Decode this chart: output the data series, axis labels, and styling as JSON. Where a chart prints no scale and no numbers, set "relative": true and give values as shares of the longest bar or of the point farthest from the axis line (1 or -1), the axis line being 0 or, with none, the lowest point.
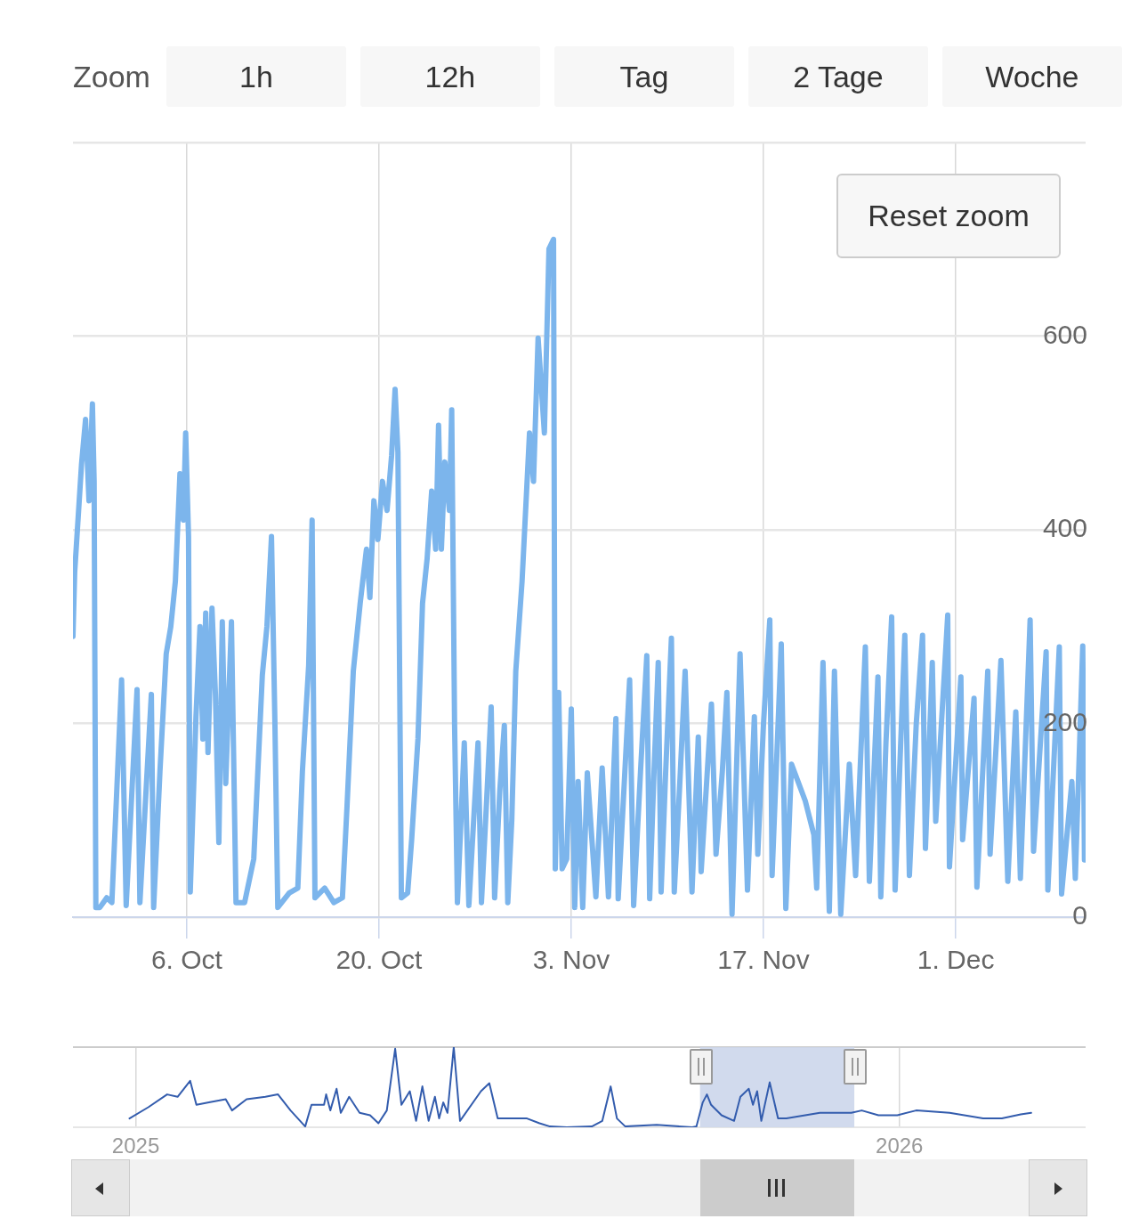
{
  "chart_data": [
    {
      "type": "line",
      "annotations": [
        "Zoom",
        "1h",
        "12h",
        "Tag",
        "2 Tage",
        "Woche",
        "Reset zoom"
      ],
      "x": [
        "2025-09-27T17:00",
        "2025-09-27T20:00",
        "2025-09-28T02:00",
        "2025-09-28T08:00",
        "2025-09-28T15:00",
        "2025-09-28T21:00",
        "2025-09-29T03:00",
        "2025-09-29T06:00",
        "2025-09-29T09:00",
        "2025-09-29T16:00",
        "2025-09-30T04:00",
        "2025-09-30T13:00",
        "2025-09-30T23:00",
        "2025-10-01T06:00",
        "2025-10-01T14:00",
        "2025-10-02T09:00",
        "2025-10-02T14:00",
        "2025-10-03T10:00",
        "2025-10-03T14:00",
        "2025-10-04T01:00",
        "2025-10-04T12:00",
        "2025-10-04T20:00",
        "2025-10-05T04:00",
        "2025-10-05T12:00",
        "2025-10-05T18:00",
        "2025-10-05T22:00",
        "2025-10-06T03:00",
        "2025-10-06T06:00",
        "2025-10-06T16:00",
        "2025-10-06T23:00",
        "2025-10-07T04:00",
        "2025-10-07T09:00",
        "2025-10-07T13:00",
        "2025-10-07T20:00",
        "2025-10-08T02:00",
        "2025-10-08T08:00",
        "2025-10-08T14:00",
        "2025-10-08T20:00",
        "2025-10-09T06:00",
        "2025-10-09T14:00",
        "2025-10-10T05:00",
        "2025-10-10T21:00",
        "2025-10-11T12:00",
        "2025-10-11T20:00",
        "2025-10-12T04:00",
        "2025-10-12T10:00",
        "2025-10-12T15:00",
        "2025-10-13T11:00",
        "2025-10-14T02:00",
        "2025-10-14T10:00",
        "2025-10-14T21:00",
        "2025-10-15T03:00",
        "2025-10-15T08:00",
        "2025-10-16T01:00",
        "2025-10-16T17:00",
        "2025-10-17T08:00",
        "2025-10-17T16:00",
        "2025-10-18T03:00",
        "2025-10-18T15:00",
        "2025-10-19T02:00",
        "2025-10-19T08:00",
        "2025-10-19T15:00",
        "2025-10-19T22:00",
        "2025-10-20T06:00",
        "2025-10-20T14:00",
        "2025-10-20T22:00",
        "2025-10-21T04:00",
        "2025-10-21T09:00",
        "2025-10-21T15:00",
        "2025-10-22T02:00",
        "2025-10-22T09:00",
        "2025-10-22T20:00",
        "2025-10-23T04:00",
        "2025-10-23T12:00",
        "2025-10-23T20:00",
        "2025-10-24T03:00",
        "2025-10-24T08:00",
        "2025-10-24T13:00",
        "2025-10-24T19:00",
        "2025-10-25T03:00",
        "2025-10-25T07:00",
        "2025-10-25T12:00",
        "2025-10-25T17:00",
        "2025-10-26T05:00",
        "2025-10-26T13:00",
        "2025-10-27T05:00",
        "2025-10-27T11:00",
        "2025-10-27T20:00",
        "2025-10-28T04:00",
        "2025-10-28T10:00",
        "2025-10-28T19:00",
        "2025-10-29T03:00",
        "2025-10-29T09:00",
        "2025-10-29T16:00",
        "2025-10-29T23:00",
        "2025-10-30T10:00",
        "2025-10-30T23:00",
        "2025-10-31T06:00",
        "2025-10-31T14:00",
        "2025-11-01T01:00",
        "2025-11-01T09:00",
        "2025-11-01T17:00",
        "2025-11-01T20:00",
        "2025-11-02T02:00",
        "2025-11-02T08:00",
        "2025-11-02T16:00",
        "2025-11-03T00:00",
        "2025-11-03T06:00",
        "2025-11-03T12:00",
        "2025-11-03T20:00",
        "2025-11-04T04:00",
        "2025-11-04T19:00",
        "2025-11-05T06:00",
        "2025-11-05T17:00",
        "2025-11-06T06:00",
        "2025-11-06T10:00",
        "2025-11-06T19:00",
        "2025-11-07T06:00",
        "2025-11-07T13:00",
        "2025-11-08T01:00",
        "2025-11-08T12:00",
        "2025-11-08T17:00",
        "2025-11-09T00:00",
        "2025-11-09T08:00",
        "2025-11-09T13:00",
        "2025-11-09T21:00",
        "2025-11-10T07:00",
        "2025-11-10T12:00",
        "2025-11-10T21:00",
        "2025-11-11T07:00",
        "2025-11-11T19:00",
        "2025-11-12T06:00",
        "2025-11-12T11:00",
        "2025-11-13T05:00",
        "2025-11-13T13:00",
        "2025-11-14T00:00",
        "2025-11-14T08:00",
        "2025-11-14T17:00",
        "2025-11-15T07:00",
        "2025-11-15T20:00",
        "2025-11-16T08:00",
        "2025-11-16T14:00",
        "2025-11-17T00:00",
        "2025-11-17T11:00",
        "2025-11-17T15:00",
        "2025-11-18T07:00",
        "2025-11-18T15:00",
        "2025-11-19T01:00",
        "2025-11-20T01:00",
        "2025-11-20T16:00",
        "2025-11-20T21:00",
        "2025-11-21T08:00",
        "2025-11-21T19:00",
        "2025-11-22T04:00",
        "2025-11-22T15:00",
        "2025-11-23T06:00",
        "2025-11-23T17:00",
        "2025-11-24T10:00",
        "2025-11-24T17:00",
        "2025-11-25T08:00",
        "2025-11-25T13:00",
        "2025-11-25T22:00",
        "2025-11-26T08:00",
        "2025-11-26T14:00",
        "2025-11-27T07:00",
        "2025-11-27T15:00",
        "2025-11-28T03:00",
        "2025-11-28T14:00",
        "2025-11-28T19:00",
        "2025-11-29T07:00",
        "2025-11-29T13:00",
        "2025-11-29T23:00",
        "2025-11-30T10:00",
        "2025-11-30T13:00",
        "2025-12-01T09:00",
        "2025-12-01T12:00",
        "2025-12-02T08:00",
        "2025-12-02T13:00",
        "2025-12-03T08:00",
        "2025-12-03T12:00",
        "2025-12-04T07:00",
        "2025-12-04T19:00",
        "2025-12-05T09:00",
        "2025-12-05T17:00",
        "2025-12-06T10:00",
        "2025-12-06T16:00",
        "2025-12-07T14:00",
        "2025-12-07T17:00",
        "2025-12-08T13:00",
        "2025-12-08T17:00",
        "2025-12-09T11:00",
        "2025-12-09T17:00",
        "2025-12-10T06:00",
        "2025-12-10T09:00"
      ],
      "series": [
        {
          "color": "#7cb5ec",
          "values": [
            290,
            356,
            412,
            468,
            514,
            430,
            530,
            450,
            10,
            10,
            20,
            15,
            150,
            245,
            12,
            235,
            15,
            230,
            10,
            150,
            272,
            300,
            347,
            458,
            410,
            500,
            393,
            26,
            207,
            300,
            184,
            314,
            170,
            319,
            230,
            77,
            305,
            138,
            305,
            15,
            15,
            60,
            250,
            300,
            393,
            200,
            10,
            25,
            30,
            150,
            260,
            410,
            20,
            30,
            15,
            20,
            114,
            254,
            324,
            380,
            330,
            430,
            390,
            450,
            420,
            477,
            545,
            480,
            20,
            25,
            80,
            184,
            324,
            370,
            440,
            380,
            508,
            380,
            470,
            420,
            524,
            200,
            15,
            180,
            12,
            180,
            15,
            120,
            217,
            20,
            130,
            198,
            15,
            100,
            254,
            347,
            500,
            450,
            598,
            500,
            690,
            700,
            50,
            232,
            50,
            60,
            215,
            10,
            140,
            10,
            149,
            21,
            154,
            21,
            205,
            19,
            120,
            245,
            12,
            150,
            270,
            19,
            140,
            263,
            26,
            150,
            288,
            26,
            130,
            254,
            26,
            186,
            47,
            220,
            65,
            150,
            232,
            3,
            272,
            28,
            207,
            65,
            200,
            307,
            43,
            282,
            9,
            158,
            120,
            85,
            30,
            263,
            6,
            254,
            3,
            158,
            43,
            279,
            37,
            248,
            21,
            180,
            310,
            28,
            291,
            43,
            200,
            291,
            71,
            263,
            99,
            200,
            312,
            52,
            248,
            80,
            226,
            31,
            254,
            65,
            265,
            37,
            212,
            40,
            307,
            68,
            274,
            28,
            279,
            24,
            140,
            40,
            280,
            59
          ]
        }
      ],
      "xlim": [
        "2025-09-27T17:00",
        "2025-12-10T11:00"
      ],
      "ylim": [
        0,
        800
      ],
      "xticks": [
        {
          "value": "2025-10-06",
          "label": "6. Oct"
        },
        {
          "value": "2025-10-20",
          "label": "20. Oct"
        },
        {
          "value": "2025-11-03",
          "label": "3. Nov"
        },
        {
          "value": "2025-11-17",
          "label": "17. Nov"
        },
        {
          "value": "2025-12-01",
          "label": "1. Dec"
        }
      ],
      "yticks": [
        0,
        200,
        400,
        600,
        {
          "value": 800,
          "label": null
        }
      ],
      "grid": true
    },
    {
      "type": "line",
      "relative": true,
      "tick_labels": "x",
      "grid": "x",
      "x": [
        "2024-12-29",
        "2025-01-07",
        "2025-01-16",
        "2025-01-21",
        "2025-01-27",
        "2025-01-30",
        "2025-02-05",
        "2025-02-13",
        "2025-02-16",
        "2025-02-23",
        "2025-03-04",
        "2025-03-10",
        "2025-03-16",
        "2025-03-23",
        "2025-03-26",
        "2025-04-01",
        "2025-04-02",
        "2025-04-04",
        "2025-04-07",
        "2025-04-09",
        "2025-04-13",
        "2025-04-18",
        "2025-04-23",
        "2025-04-27",
        "2025-05-01",
        "2025-05-05",
        "2025-05-08",
        "2025-05-12",
        "2025-05-15",
        "2025-05-18",
        "2025-05-21",
        "2025-05-24",
        "2025-05-26",
        "2025-05-28",
        "2025-05-30",
        "2025-06-02",
        "2025-06-05",
        "2025-06-15",
        "2025-06-19",
        "2025-06-23",
        "2025-07-07",
        "2025-07-13",
        "2025-07-18",
        "2025-07-26",
        "2025-08-07",
        "2025-08-12",
        "2025-08-16",
        "2025-08-19",
        "2025-08-23",
        "2025-09-07",
        "2025-09-24",
        "2025-09-26",
        "2025-09-29",
        "2025-10-01",
        "2025-10-03",
        "2025-10-08",
        "2025-10-14",
        "2025-10-17",
        "2025-10-21",
        "2025-10-23",
        "2025-10-25",
        "2025-10-27",
        "2025-10-31",
        "2025-11-04",
        "2025-11-08",
        "2025-11-24",
        "2025-12-09",
        "2025-12-14",
        "2025-12-22",
        "2025-12-31",
        "2026-01-09",
        "2026-01-25",
        "2026-02-10",
        "2026-02-19",
        "2026-02-28",
        "2026-03-05"
      ],
      "series": [
        {
          "color": "#335cad",
          "values": [
            0.11,
            0.25,
            0.41,
            0.38,
            0.58,
            0.28,
            0.31,
            0.35,
            0.21,
            0.35,
            0.38,
            0.41,
            0.21,
            0.01,
            0.28,
            0.28,
            0.41,
            0.21,
            0.48,
            0.18,
            0.38,
            0.18,
            0.15,
            0.05,
            0.21,
            0.98,
            0.28,
            0.45,
            0.08,
            0.51,
            0.08,
            0.38,
            0.11,
            0.31,
            0.18,
            1,
            0.08,
            0.45,
            0.55,
            0.11,
            0.11,
            0.05,
            0.01,
            0,
            0.01,
            0.08,
            0.51,
            0.11,
            0.01,
            0.03,
            0,
            0.01,
            0.31,
            0.41,
            0.28,
            0.15,
            0.08,
            0.38,
            0.48,
            0.28,
            0.45,
            0.08,
            0.56,
            0.11,
            0.11,
            0.18,
            0.18,
            0.21,
            0.15,
            0.15,
            0.21,
            0.18,
            0.11,
            0.11,
            0.16,
            0.18
          ]
        }
      ],
      "xlim": [
        "2024-12-02",
        "2026-03-31"
      ],
      "xticks": [
        {
          "value": "2025-01-01",
          "label": "2025"
        },
        {
          "value": "2026-01-01",
          "label": "2026"
        }
      ],
      "bands": [
        {
          "axis": "x",
          "from": "2025-09-27T17:00",
          "to": "2025-12-10T11:00",
          "color": "#ccd6eb"
        }
      ]
    }
  ]
}
